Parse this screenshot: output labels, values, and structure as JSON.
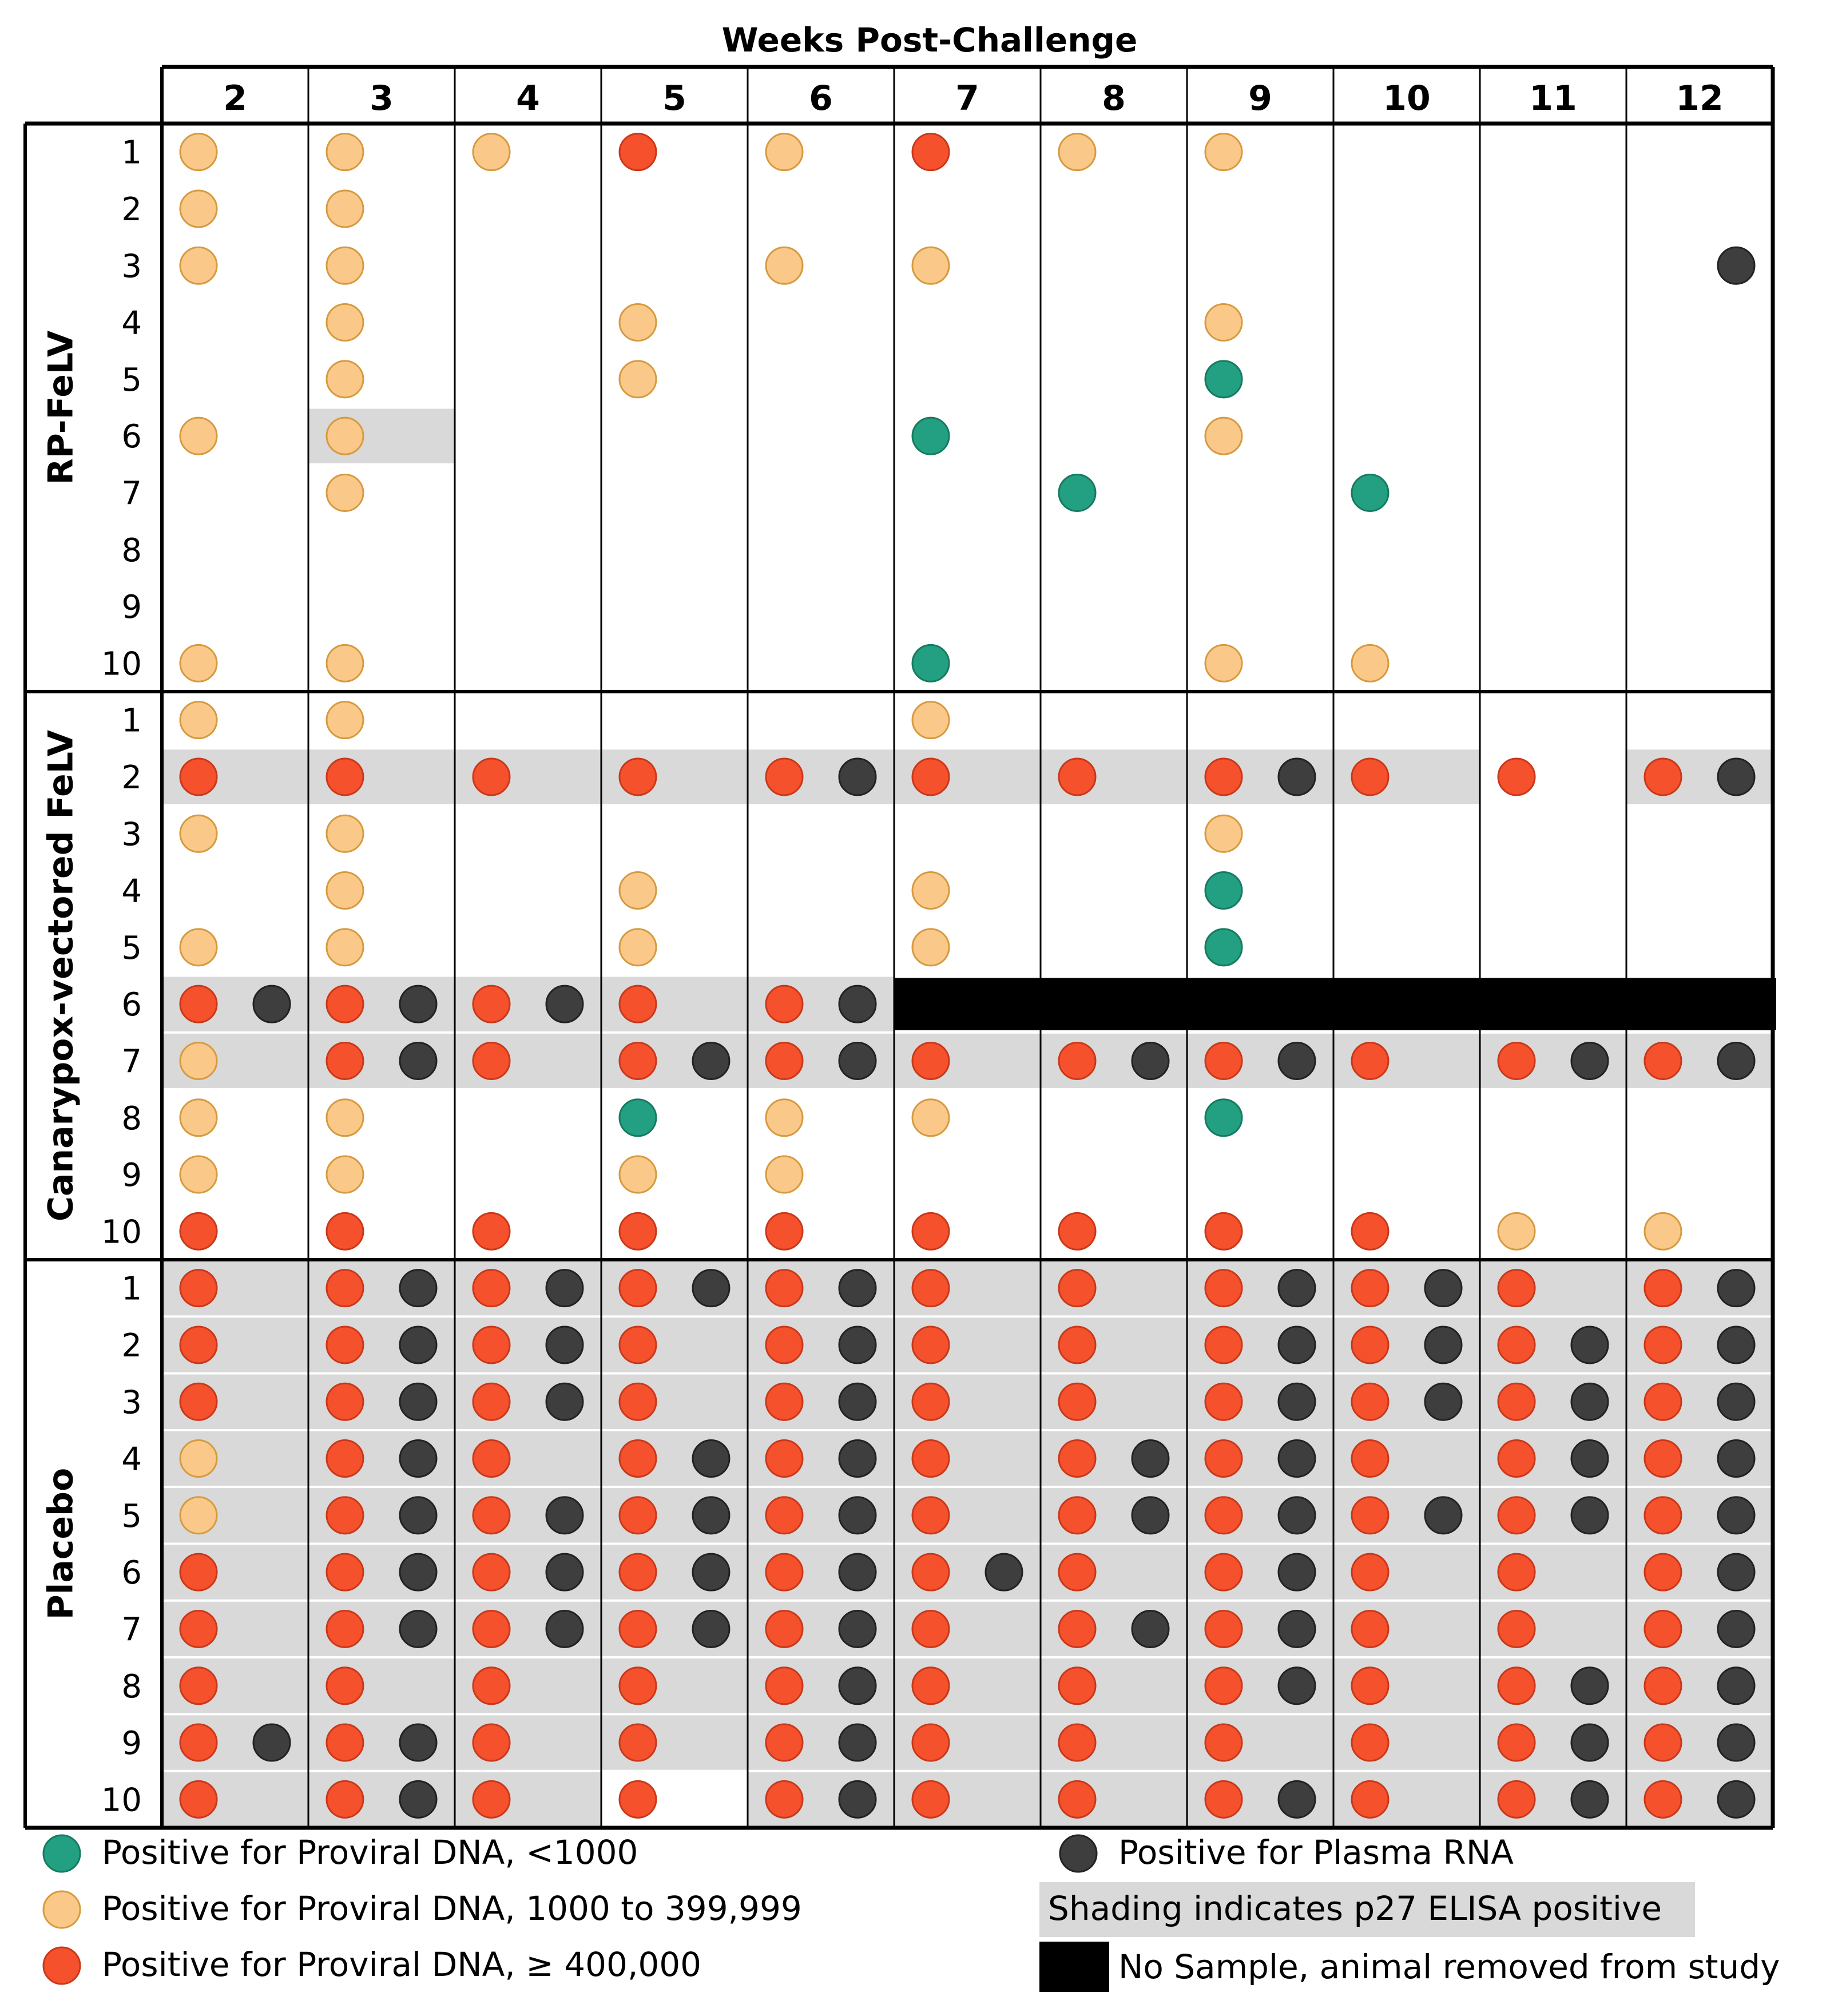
{
  "chart_data": {
    "type": "table",
    "title": "Weeks Post-Challenge",
    "weeks": [
      "2",
      "3",
      "4",
      "5",
      "6",
      "7",
      "8",
      "9",
      "10",
      "11",
      "12"
    ],
    "animal_ids": [
      "1",
      "2",
      "3",
      "4",
      "5",
      "6",
      "7",
      "8",
      "9",
      "10"
    ],
    "colors": {
      "teal": "#22a081",
      "lightorange": "#fac98a",
      "red": "#f5512c",
      "rna": "#3e3e3e",
      "shade": "#d9d9d9",
      "removed": "#000000",
      "grid": "#000000"
    },
    "groups": [
      {
        "name": "RP-FeLV",
        "dna": [
          [
            "L",
            "L",
            "L",
            "R",
            "L",
            "R",
            "L",
            "L",
            "",
            "",
            ""
          ],
          [
            "L",
            "L",
            "",
            "",
            "",
            "",
            "",
            "",
            "",
            "",
            ""
          ],
          [
            "L",
            "L",
            "",
            "",
            "L",
            "L",
            "",
            "",
            "",
            "",
            ""
          ],
          [
            "",
            "L",
            "",
            "L",
            "",
            "",
            "",
            "L",
            "",
            "",
            ""
          ],
          [
            "",
            "L",
            "",
            "L",
            "",
            "",
            "",
            "T",
            "",
            "",
            ""
          ],
          [
            "L",
            "L",
            "",
            "",
            "",
            "T",
            "",
            "L",
            "",
            "",
            ""
          ],
          [
            "",
            "L",
            "",
            "",
            "",
            "",
            "T",
            "",
            "T",
            "",
            ""
          ],
          [
            "",
            "",
            "",
            "",
            "",
            "",
            "",
            "",
            "",
            "",
            ""
          ],
          [
            "",
            "",
            "",
            "",
            "",
            "",
            "",
            "",
            "",
            "",
            ""
          ],
          [
            "L",
            "L",
            "",
            "",
            "",
            "T",
            "",
            "L",
            "L",
            "",
            ""
          ]
        ],
        "rna": [
          [
            0,
            0,
            0,
            0,
            0,
            0,
            0,
            0,
            0,
            0,
            0
          ],
          [
            0,
            0,
            0,
            0,
            0,
            0,
            0,
            0,
            0,
            0,
            0
          ],
          [
            0,
            0,
            0,
            0,
            0,
            0,
            0,
            0,
            0,
            0,
            1
          ],
          [
            0,
            0,
            0,
            0,
            0,
            0,
            0,
            0,
            0,
            0,
            0
          ],
          [
            0,
            0,
            0,
            0,
            0,
            0,
            0,
            0,
            0,
            0,
            0
          ],
          [
            0,
            0,
            0,
            0,
            0,
            0,
            0,
            0,
            0,
            0,
            0
          ],
          [
            0,
            0,
            0,
            0,
            0,
            0,
            0,
            0,
            0,
            0,
            0
          ],
          [
            0,
            0,
            0,
            0,
            0,
            0,
            0,
            0,
            0,
            0,
            0
          ],
          [
            0,
            0,
            0,
            0,
            0,
            0,
            0,
            0,
            0,
            0,
            0
          ],
          [
            0,
            0,
            0,
            0,
            0,
            0,
            0,
            0,
            0,
            0,
            0
          ]
        ],
        "shaded": [
          [
            0,
            0,
            0,
            0,
            0,
            0,
            0,
            0,
            0,
            0,
            0
          ],
          [
            0,
            0,
            0,
            0,
            0,
            0,
            0,
            0,
            0,
            0,
            0
          ],
          [
            0,
            0,
            0,
            0,
            0,
            0,
            0,
            0,
            0,
            0,
            0
          ],
          [
            0,
            0,
            0,
            0,
            0,
            0,
            0,
            0,
            0,
            0,
            0
          ],
          [
            0,
            0,
            0,
            0,
            0,
            0,
            0,
            0,
            0,
            0,
            0
          ],
          [
            0,
            1,
            0,
            0,
            0,
            0,
            0,
            0,
            0,
            0,
            0
          ],
          [
            0,
            0,
            0,
            0,
            0,
            0,
            0,
            0,
            0,
            0,
            0
          ],
          [
            0,
            0,
            0,
            0,
            0,
            0,
            0,
            0,
            0,
            0,
            0
          ],
          [
            0,
            0,
            0,
            0,
            0,
            0,
            0,
            0,
            0,
            0,
            0
          ],
          [
            0,
            0,
            0,
            0,
            0,
            0,
            0,
            0,
            0,
            0,
            0
          ]
        ]
      },
      {
        "name": "Canarypox-vectored FeLV",
        "dna": [
          [
            "L",
            "L",
            "",
            "",
            "",
            "L",
            "",
            "",
            "",
            "",
            ""
          ],
          [
            "R",
            "R",
            "R",
            "R",
            "R",
            "R",
            "R",
            "R",
            "R",
            "R",
            "R"
          ],
          [
            "L",
            "L",
            "",
            "",
            "",
            "",
            "",
            "L",
            "",
            "",
            ""
          ],
          [
            "",
            "L",
            "",
            "L",
            "",
            "L",
            "",
            "T",
            "",
            "",
            ""
          ],
          [
            "L",
            "L",
            "",
            "L",
            "",
            "L",
            "",
            "T",
            "",
            "",
            ""
          ],
          [
            "R",
            "R",
            "R",
            "R",
            "R",
            "",
            "",
            "",
            "",
            "",
            ""
          ],
          [
            "L",
            "R",
            "R",
            "R",
            "R",
            "R",
            "R",
            "R",
            "R",
            "R",
            "R"
          ],
          [
            "L",
            "L",
            "",
            "T",
            "L",
            "L",
            "",
            "T",
            "",
            "",
            ""
          ],
          [
            "L",
            "L",
            "",
            "L",
            "L",
            "",
            "",
            "",
            "",
            "",
            ""
          ],
          [
            "R",
            "R",
            "R",
            "R",
            "R",
            "R",
            "R",
            "R",
            "R",
            "L",
            "L"
          ]
        ],
        "rna": [
          [
            0,
            0,
            0,
            0,
            0,
            0,
            0,
            0,
            0,
            0,
            0
          ],
          [
            0,
            0,
            0,
            0,
            1,
            0,
            0,
            1,
            0,
            0,
            1
          ],
          [
            0,
            0,
            0,
            0,
            0,
            0,
            0,
            0,
            0,
            0,
            0
          ],
          [
            0,
            0,
            0,
            0,
            0,
            0,
            0,
            0,
            0,
            0,
            0
          ],
          [
            0,
            0,
            0,
            0,
            0,
            0,
            0,
            0,
            0,
            0,
            0
          ],
          [
            1,
            1,
            1,
            0,
            1,
            0,
            0,
            0,
            0,
            0,
            0
          ],
          [
            0,
            1,
            0,
            1,
            1,
            0,
            1,
            1,
            0,
            1,
            1
          ],
          [
            0,
            0,
            0,
            0,
            0,
            0,
            0,
            0,
            0,
            0,
            0
          ],
          [
            0,
            0,
            0,
            0,
            0,
            0,
            0,
            0,
            0,
            0,
            0
          ],
          [
            0,
            0,
            0,
            0,
            0,
            0,
            0,
            0,
            0,
            0,
            0
          ]
        ],
        "shaded": [
          [
            0,
            0,
            0,
            0,
            0,
            0,
            0,
            0,
            0,
            0,
            0
          ],
          [
            1,
            1,
            1,
            1,
            1,
            1,
            1,
            1,
            1,
            0,
            1
          ],
          [
            0,
            0,
            0,
            0,
            0,
            0,
            0,
            0,
            0,
            0,
            0
          ],
          [
            0,
            0,
            0,
            0,
            0,
            0,
            0,
            0,
            0,
            0,
            0
          ],
          [
            0,
            0,
            0,
            0,
            0,
            0,
            0,
            0,
            0,
            0,
            0
          ],
          [
            1,
            1,
            1,
            1,
            1,
            0,
            0,
            0,
            0,
            0,
            0
          ],
          [
            1,
            1,
            1,
            1,
            1,
            1,
            1,
            1,
            1,
            1,
            1
          ],
          [
            0,
            0,
            0,
            0,
            0,
            0,
            0,
            0,
            0,
            0,
            0
          ],
          [
            0,
            0,
            0,
            0,
            0,
            0,
            0,
            0,
            0,
            0,
            0
          ],
          [
            0,
            0,
            0,
            0,
            0,
            0,
            0,
            0,
            0,
            0,
            0
          ]
        ],
        "removed": {
          "animal": "6",
          "from_week": "7"
        }
      },
      {
        "name": "Placebo",
        "dna": [
          [
            "R",
            "R",
            "R",
            "R",
            "R",
            "R",
            "R",
            "R",
            "R",
            "R",
            "R"
          ],
          [
            "R",
            "R",
            "R",
            "R",
            "R",
            "R",
            "R",
            "R",
            "R",
            "R",
            "R"
          ],
          [
            "R",
            "R",
            "R",
            "R",
            "R",
            "R",
            "R",
            "R",
            "R",
            "R",
            "R"
          ],
          [
            "L",
            "R",
            "R",
            "R",
            "R",
            "R",
            "R",
            "R",
            "R",
            "R",
            "R"
          ],
          [
            "L",
            "R",
            "R",
            "R",
            "R",
            "R",
            "R",
            "R",
            "R",
            "R",
            "R"
          ],
          [
            "R",
            "R",
            "R",
            "R",
            "R",
            "R",
            "R",
            "R",
            "R",
            "R",
            "R"
          ],
          [
            "R",
            "R",
            "R",
            "R",
            "R",
            "R",
            "R",
            "R",
            "R",
            "R",
            "R"
          ],
          [
            "R",
            "R",
            "R",
            "R",
            "R",
            "R",
            "R",
            "R",
            "R",
            "R",
            "R"
          ],
          [
            "R",
            "R",
            "R",
            "R",
            "R",
            "R",
            "R",
            "R",
            "R",
            "R",
            "R"
          ],
          [
            "R",
            "R",
            "R",
            "R",
            "R",
            "R",
            "R",
            "R",
            "R",
            "R",
            "R"
          ]
        ],
        "rna": [
          [
            0,
            1,
            1,
            1,
            1,
            0,
            0,
            1,
            1,
            0,
            1
          ],
          [
            0,
            1,
            1,
            0,
            1,
            0,
            0,
            1,
            1,
            1,
            1
          ],
          [
            0,
            1,
            1,
            0,
            1,
            0,
            0,
            1,
            1,
            1,
            1
          ],
          [
            0,
            1,
            0,
            1,
            1,
            0,
            1,
            1,
            0,
            1,
            1
          ],
          [
            0,
            1,
            1,
            1,
            1,
            0,
            1,
            1,
            1,
            1,
            1
          ],
          [
            0,
            1,
            1,
            1,
            1,
            1,
            0,
            1,
            0,
            0,
            1
          ],
          [
            0,
            1,
            1,
            1,
            1,
            0,
            1,
            1,
            0,
            0,
            1
          ],
          [
            0,
            0,
            0,
            0,
            1,
            0,
            0,
            1,
            0,
            1,
            1
          ],
          [
            1,
            1,
            0,
            0,
            1,
            0,
            0,
            0,
            0,
            1,
            1
          ],
          [
            0,
            1,
            0,
            0,
            1,
            0,
            0,
            1,
            0,
            1,
            1
          ]
        ],
        "shaded": [
          [
            1,
            1,
            1,
            1,
            1,
            1,
            1,
            1,
            1,
            1,
            1
          ],
          [
            1,
            1,
            1,
            1,
            1,
            1,
            1,
            1,
            1,
            1,
            1
          ],
          [
            1,
            1,
            1,
            1,
            1,
            1,
            1,
            1,
            1,
            1,
            1
          ],
          [
            1,
            1,
            1,
            1,
            1,
            1,
            1,
            1,
            1,
            1,
            1
          ],
          [
            1,
            1,
            1,
            1,
            1,
            1,
            1,
            1,
            1,
            1,
            1
          ],
          [
            1,
            1,
            1,
            1,
            1,
            1,
            1,
            1,
            1,
            1,
            1
          ],
          [
            1,
            1,
            1,
            1,
            1,
            1,
            1,
            1,
            1,
            1,
            1
          ],
          [
            1,
            1,
            1,
            1,
            1,
            1,
            1,
            1,
            1,
            1,
            1
          ],
          [
            1,
            1,
            1,
            1,
            1,
            1,
            1,
            1,
            1,
            1,
            1
          ],
          [
            1,
            1,
            1,
            0,
            1,
            1,
            1,
            1,
            1,
            1,
            1
          ]
        ]
      }
    ],
    "legend": {
      "teal": "Positive for Proviral DNA, <1000",
      "lightorange": "Positive for Proviral DNA, 1000 to 399,999",
      "red": "Positive for Proviral DNA, ≥ 400,000",
      "rna": "Positive for Plasma RNA",
      "shading": "Shading indicates p27 ELISA positive",
      "removed": "No Sample, animal removed from study"
    }
  }
}
